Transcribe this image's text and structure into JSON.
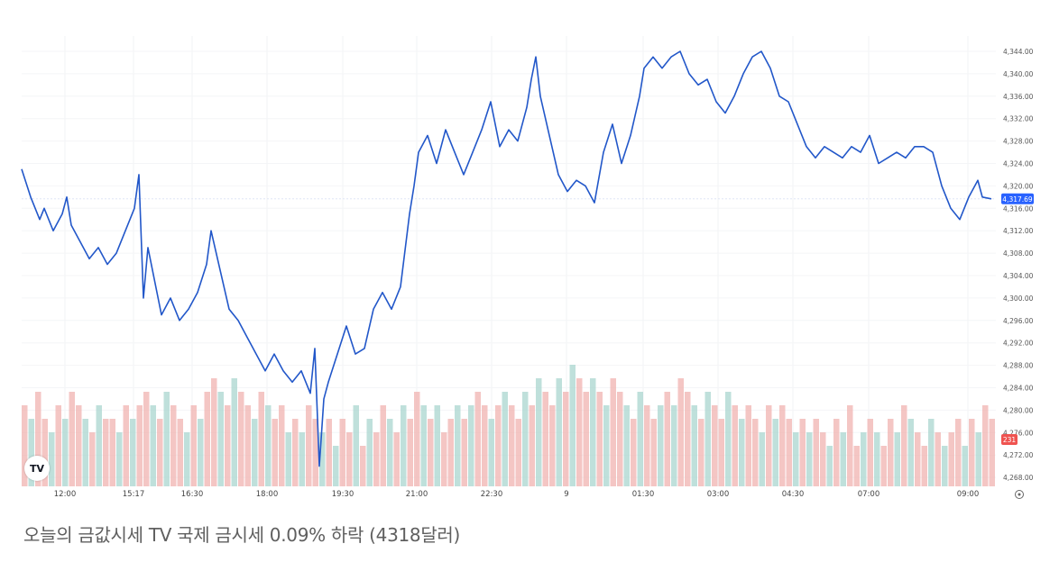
{
  "caption": "오늘의 금값시세 TV 국제 금시세 0.09% 하락 (4318달러)",
  "logo_text": "TV",
  "icons": {
    "logo": "tradingview-logo-icon",
    "settings": "settings-icon"
  },
  "colors": {
    "line": "#2257c9",
    "price_badge": "#2962ff",
    "volume_badge": "#ef5350",
    "volume_up": "#a9d6cf",
    "volume_down": "#f0b3b0"
  },
  "chart_data": {
    "type": "line",
    "title": "",
    "xlabel": "",
    "ylabel": "",
    "x_ticks": [
      "12:00",
      "15:17",
      "16:30",
      "18:00",
      "19:30",
      "21:00",
      "22:30",
      "9",
      "01:30",
      "03:00",
      "04:30",
      "07:00",
      "09:00"
    ],
    "y_ticks": [
      "4,344.00",
      "4,340.00",
      "4,336.00",
      "4,332.00",
      "4,328.00",
      "4,324.00",
      "4,320.00",
      "4,316.00",
      "4,312.00",
      "4,308.00",
      "4,304.00",
      "4,300.00",
      "4,296.00",
      "4,292.00",
      "4,288.00",
      "4,284.00",
      "4,280.00",
      "4,276.00",
      "4,272.00",
      "4,268.00"
    ],
    "ylim": [
      4266,
      4346
    ],
    "last_price_label": "4,317.69",
    "volume_label": "231",
    "series": [
      {
        "points": [
          [
            0,
            4323
          ],
          [
            2,
            4318
          ],
          [
            4,
            4314
          ],
          [
            5,
            4316
          ],
          [
            7,
            4312
          ],
          [
            9,
            4315
          ],
          [
            10,
            4318
          ],
          [
            11,
            4313
          ],
          [
            13,
            4310
          ],
          [
            15,
            4307
          ],
          [
            17,
            4309
          ],
          [
            19,
            4306
          ],
          [
            21,
            4308
          ],
          [
            23,
            4312
          ],
          [
            25,
            4316
          ],
          [
            26,
            4322
          ],
          [
            27,
            4300
          ],
          [
            28,
            4309
          ],
          [
            29,
            4305
          ],
          [
            31,
            4297
          ],
          [
            33,
            4300
          ],
          [
            35,
            4296
          ],
          [
            37,
            4298
          ],
          [
            39,
            4301
          ],
          [
            41,
            4306
          ],
          [
            42,
            4312
          ],
          [
            44,
            4305
          ],
          [
            46,
            4298
          ],
          [
            48,
            4296
          ],
          [
            50,
            4293
          ],
          [
            52,
            4290
          ],
          [
            54,
            4287
          ],
          [
            56,
            4290
          ],
          [
            58,
            4287
          ],
          [
            60,
            4285
          ],
          [
            62,
            4287
          ],
          [
            64,
            4283
          ],
          [
            65,
            4291
          ],
          [
            66,
            4270
          ],
          [
            67,
            4282
          ],
          [
            68,
            4285
          ],
          [
            70,
            4290
          ],
          [
            72,
            4295
          ],
          [
            74,
            4290
          ],
          [
            76,
            4291
          ],
          [
            78,
            4298
          ],
          [
            80,
            4301
          ],
          [
            82,
            4298
          ],
          [
            84,
            4302
          ],
          [
            86,
            4315
          ],
          [
            87,
            4320
          ],
          [
            88,
            4326
          ],
          [
            90,
            4329
          ],
          [
            92,
            4324
          ],
          [
            94,
            4330
          ],
          [
            96,
            4326
          ],
          [
            98,
            4322
          ],
          [
            100,
            4326
          ],
          [
            102,
            4330
          ],
          [
            104,
            4335
          ],
          [
            106,
            4327
          ],
          [
            108,
            4330
          ],
          [
            110,
            4328
          ],
          [
            112,
            4334
          ],
          [
            113,
            4339
          ],
          [
            114,
            4343
          ],
          [
            115,
            4336
          ],
          [
            117,
            4329
          ],
          [
            119,
            4322
          ],
          [
            121,
            4319
          ],
          [
            123,
            4321
          ],
          [
            125,
            4320
          ],
          [
            127,
            4317
          ],
          [
            129,
            4326
          ],
          [
            131,
            4331
          ],
          [
            133,
            4324
          ],
          [
            135,
            4329
          ],
          [
            137,
            4336
          ],
          [
            138,
            4341
          ],
          [
            140,
            4343
          ],
          [
            142,
            4341
          ],
          [
            144,
            4343
          ],
          [
            146,
            4344
          ],
          [
            148,
            4340
          ],
          [
            150,
            4338
          ],
          [
            152,
            4339
          ],
          [
            154,
            4335
          ],
          [
            156,
            4333
          ],
          [
            158,
            4336
          ],
          [
            160,
            4340
          ],
          [
            162,
            4343
          ],
          [
            164,
            4344
          ],
          [
            166,
            4341
          ],
          [
            168,
            4336
          ],
          [
            170,
            4335
          ],
          [
            172,
            4331
          ],
          [
            174,
            4327
          ],
          [
            176,
            4325
          ],
          [
            178,
            4327
          ],
          [
            180,
            4326
          ],
          [
            182,
            4325
          ],
          [
            184,
            4327
          ],
          [
            186,
            4326
          ],
          [
            188,
            4329
          ],
          [
            190,
            4324
          ],
          [
            192,
            4325
          ],
          [
            194,
            4326
          ],
          [
            196,
            4325
          ],
          [
            198,
            4327
          ],
          [
            200,
            4327
          ],
          [
            202,
            4326
          ],
          [
            204,
            4320
          ],
          [
            206,
            4316
          ],
          [
            208,
            4314
          ],
          [
            210,
            4318
          ],
          [
            212,
            4321
          ],
          [
            213,
            4318
          ],
          [
            215,
            4317.69
          ]
        ]
      }
    ],
    "volume": [
      6,
      5,
      7,
      5,
      4,
      6,
      5,
      7,
      6,
      5,
      4,
      6,
      5,
      5,
      4,
      6,
      5,
      6,
      7,
      6,
      5,
      7,
      6,
      5,
      4,
      6,
      5,
      7,
      8,
      7,
      6,
      8,
      7,
      6,
      5,
      7,
      6,
      5,
      6,
      4,
      5,
      4,
      6,
      5,
      4,
      5,
      3,
      5,
      4,
      6,
      3,
      5,
      4,
      6,
      5,
      4,
      6,
      5,
      7,
      6,
      5,
      6,
      4,
      5,
      6,
      5,
      6,
      7,
      6,
      5,
      6,
      7,
      6,
      5,
      7,
      6,
      8,
      7,
      6,
      8,
      7,
      9,
      8,
      7,
      8,
      7,
      6,
      8,
      7,
      6,
      5,
      7,
      6,
      5,
      6,
      7,
      6,
      8,
      7,
      6,
      5,
      7,
      6,
      5,
      7,
      6,
      5,
      6,
      5,
      4,
      6,
      5,
      6,
      5,
      4,
      5,
      4,
      5,
      4,
      3,
      5,
      4,
      6,
      3,
      4,
      5,
      4,
      3,
      5,
      4,
      6,
      5,
      4,
      3,
      5,
      4,
      3,
      4,
      5,
      3,
      5,
      4,
      6,
      5
    ]
  }
}
